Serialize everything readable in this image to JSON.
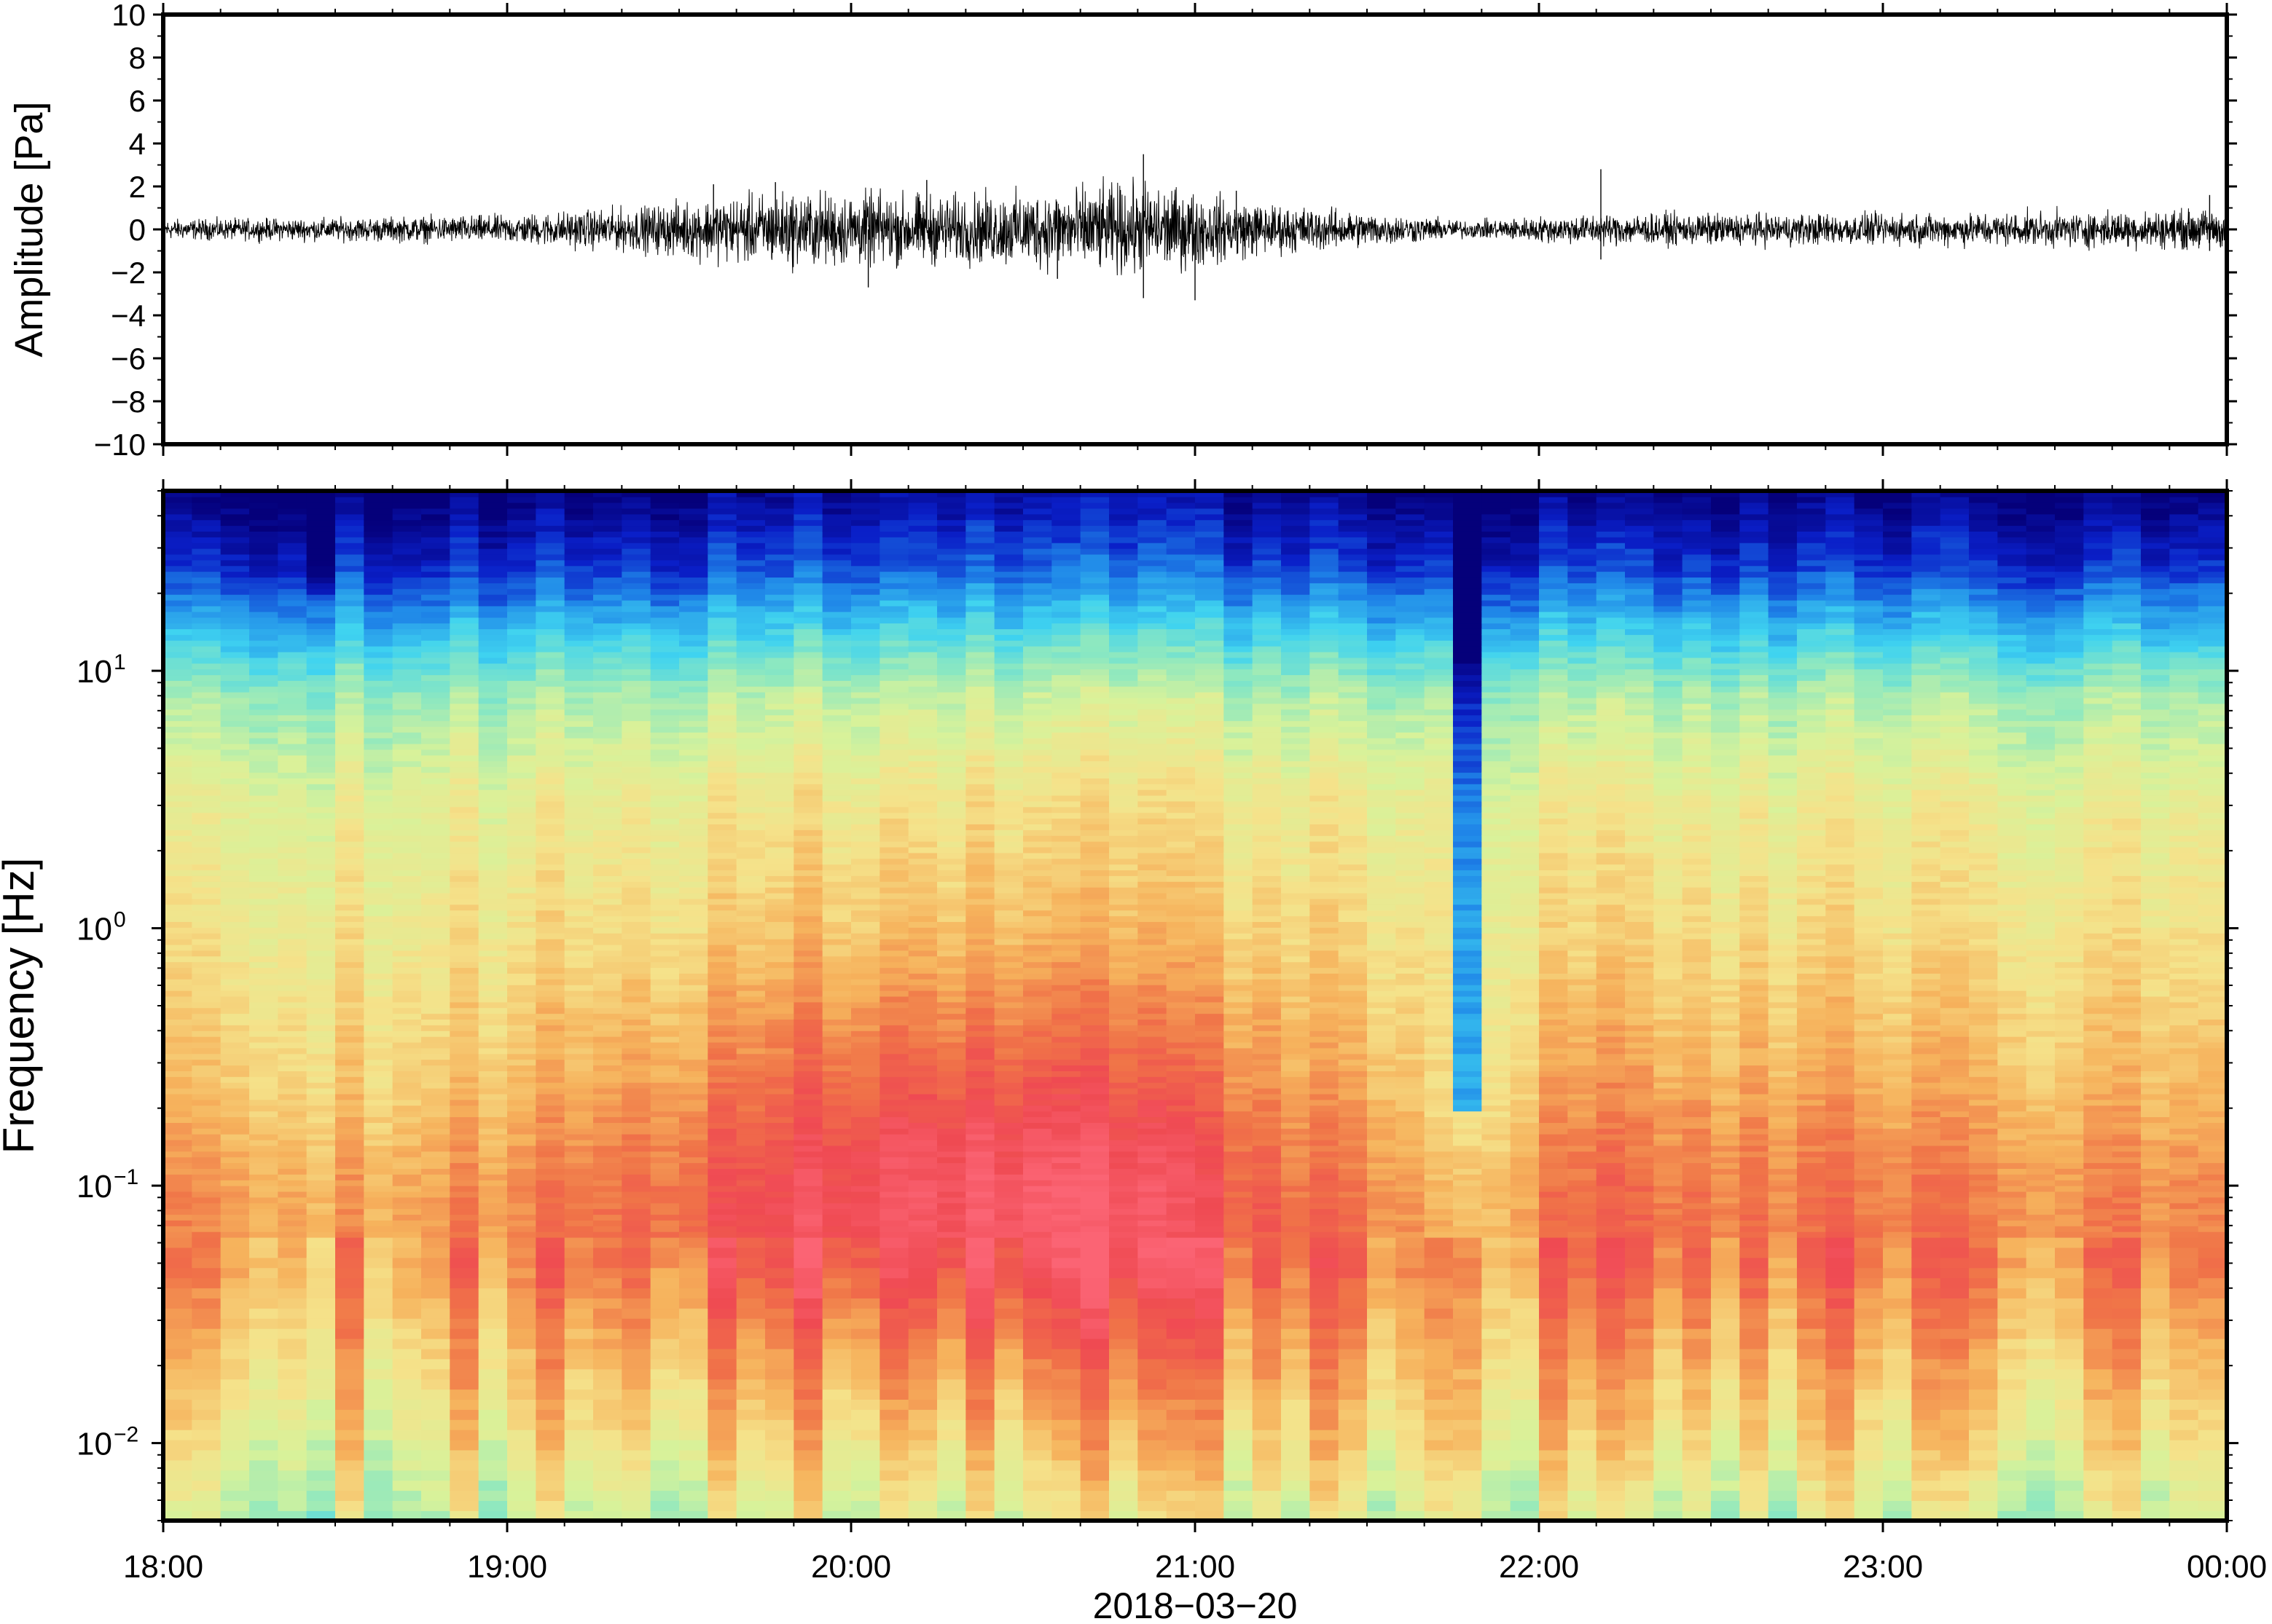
{
  "chart_data": [
    {
      "type": "line",
      "ylabel": "Amplitude [Pa]",
      "ylim": [
        -10,
        10
      ],
      "yticks": [
        10,
        8,
        6,
        4,
        2,
        0,
        -2,
        -4,
        -6,
        -8,
        -10
      ],
      "ytick_labels": [
        "10",
        "8",
        "6",
        "4",
        "2",
        "0",
        "−2",
        "−4",
        "−6",
        "−8",
        "−10"
      ],
      "x_range_hours": [
        18,
        24
      ],
      "envelope": {
        "hours": [
          18.0,
          18.5,
          19.0,
          19.4,
          19.6,
          19.8,
          20.0,
          20.3,
          20.5,
          20.7,
          20.85,
          21.0,
          21.2,
          21.5,
          21.8,
          22.0,
          22.2,
          22.5,
          23.0,
          23.5,
          24.0
        ],
        "half_amplitude_pa": [
          0.35,
          0.4,
          0.5,
          0.8,
          1.1,
          1.3,
          1.3,
          1.2,
          1.3,
          1.5,
          1.6,
          1.3,
          0.9,
          0.6,
          0.3,
          0.45,
          0.55,
          0.55,
          0.55,
          0.6,
          0.7
        ]
      },
      "peaks": [
        {
          "hour": 19.6,
          "value": 2.1
        },
        {
          "hour": 19.78,
          "value": 2.2
        },
        {
          "hour": 20.05,
          "value": -2.7
        },
        {
          "hour": 20.22,
          "value": 2.3
        },
        {
          "hour": 20.6,
          "value": -2.3
        },
        {
          "hour": 20.85,
          "value": 3.5
        },
        {
          "hour": 20.85,
          "value": -3.2
        },
        {
          "hour": 21.0,
          "value": -3.3
        },
        {
          "hour": 21.12,
          "value": 1.8
        },
        {
          "hour": 22.18,
          "value": 2.8
        },
        {
          "hour": 22.18,
          "value": -1.4
        },
        {
          "hour": 23.95,
          "value": 1.6
        },
        {
          "hour": 23.95,
          "value": -1.0
        }
      ]
    },
    {
      "type": "heatmap",
      "ylabel": "Frequency [Hz]",
      "xlabel": "2018−03−20",
      "yscale": "log",
      "ylim_hz": [
        0.005,
        50
      ],
      "yticks": [
        {
          "base": "10",
          "exp": "−2",
          "value": 0.01
        },
        {
          "base": "10",
          "exp": "−1",
          "value": 0.1
        },
        {
          "base": "10",
          "exp": "0",
          "value": 1
        },
        {
          "base": "10",
          "exp": "1",
          "value": 10
        }
      ],
      "xticks": [
        "18:00",
        "19:00",
        "20:00",
        "21:00",
        "22:00",
        "23:00",
        "00:00"
      ],
      "colormap": [
        "#05007a",
        "#0a1fc8",
        "#1f86e8",
        "#3fd3f0",
        "#8de8c0",
        "#d8f29a",
        "#f5e28a",
        "#f6b25c",
        "#f07448",
        "#ef4a52",
        "#fb6474"
      ],
      "level_model": {
        "base_by_log10_freq": {
          "log10_hz": [
            -2.3,
            -2.0,
            -1.6,
            -1.3,
            -1.0,
            -0.6,
            -0.3,
            0.0,
            0.5,
            0.9,
            1.15,
            1.4,
            1.7
          ],
          "level": [
            0.5,
            0.6,
            0.7,
            0.78,
            0.76,
            0.68,
            0.64,
            0.6,
            0.55,
            0.44,
            0.28,
            0.12,
            0.0
          ]
        },
        "activity_by_hour": {
          "hours": [
            18.0,
            18.5,
            19.0,
            19.5,
            19.8,
            20.2,
            20.6,
            20.85,
            21.0,
            21.3,
            21.6,
            21.75,
            22.0,
            22.17,
            22.5,
            23.0,
            23.5,
            24.0
          ],
          "gain": [
            0.0,
            -0.03,
            0.0,
            0.05,
            0.1,
            0.13,
            0.14,
            0.12,
            0.09,
            0.03,
            0.0,
            -0.1,
            0.0,
            0.04,
            0.02,
            0.02,
            0.0,
            0.0
          ]
        },
        "notches": [
          {
            "hour": 21.77,
            "width_hours": 0.06,
            "max_freq_hz": 0.2,
            "drop": 0.35
          },
          {
            "hour": 18.45,
            "width_hours": 0.1,
            "max_freq_hz": 20,
            "drop": 0.07
          }
        ],
        "bursts": [
          {
            "hour": 22.17,
            "width_hours": 0.05,
            "min_freq_hz": 0.007,
            "max_freq_hz": 0.25,
            "boost": 0.2
          }
        ]
      }
    }
  ]
}
